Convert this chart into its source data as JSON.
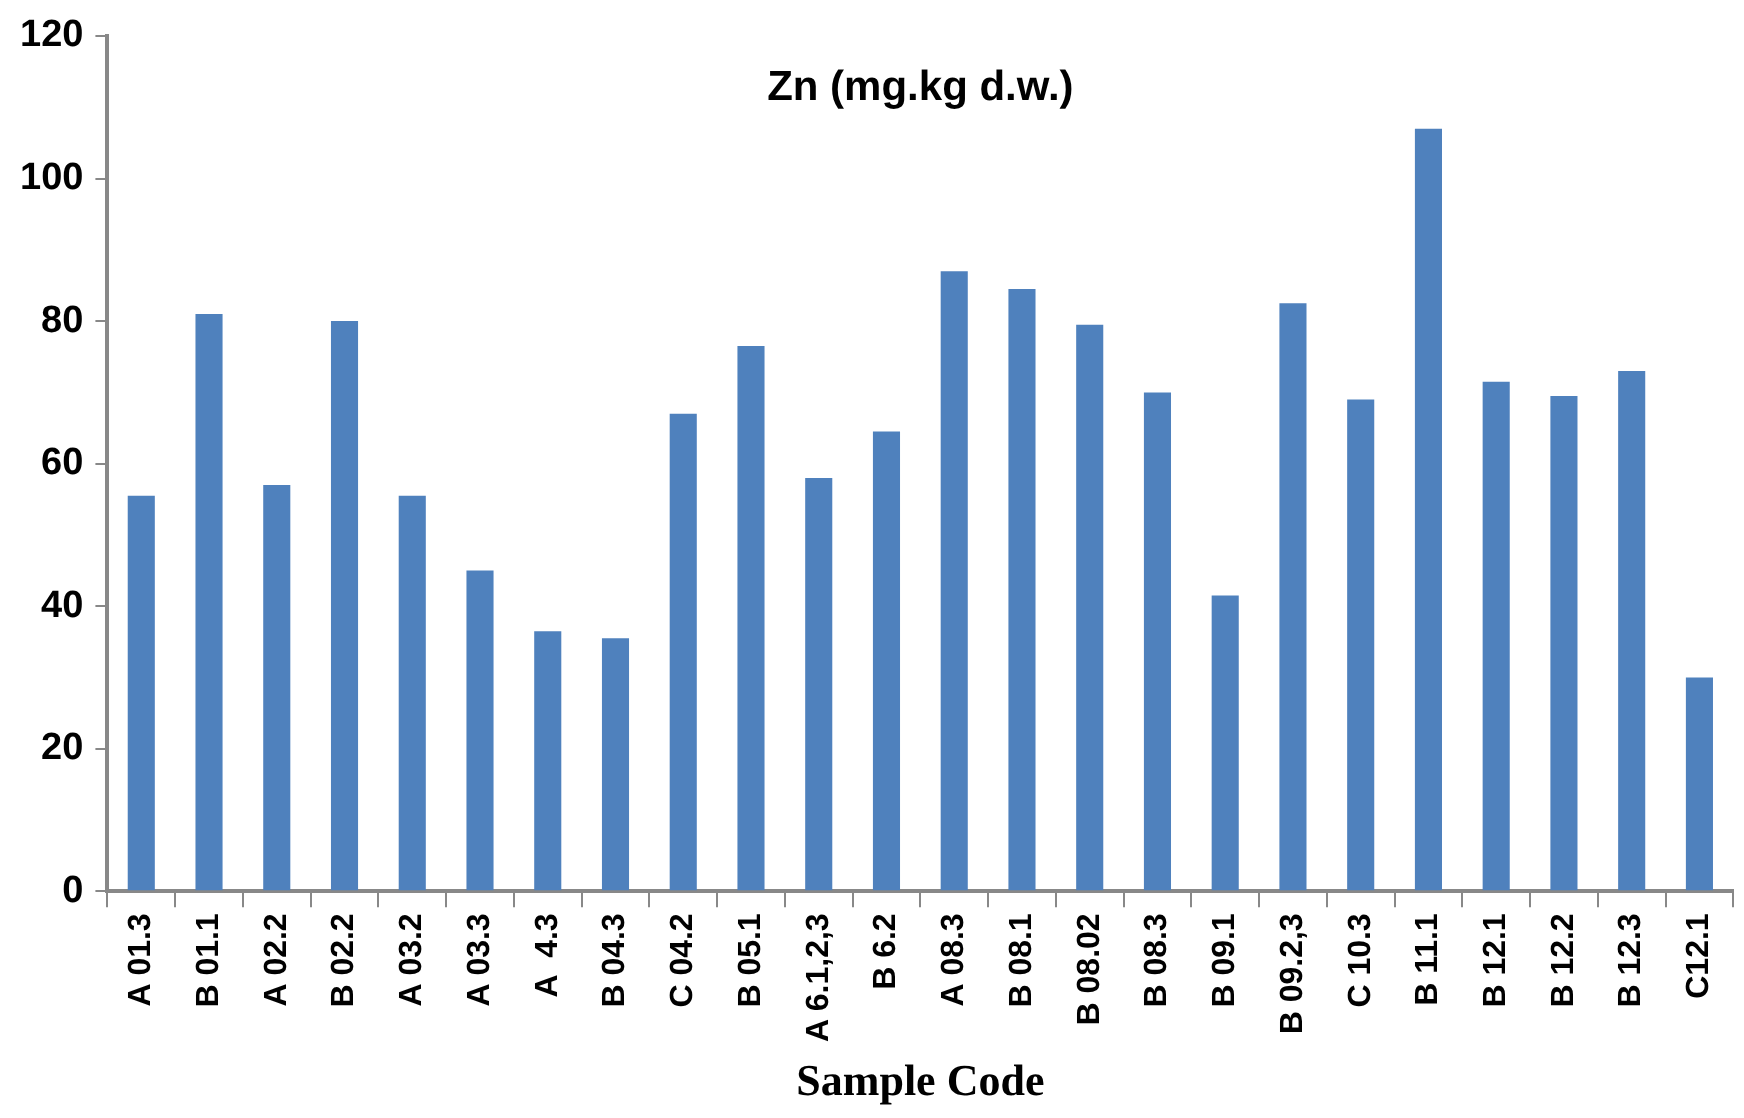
{
  "chart_data": {
    "type": "bar",
    "title": "Zn (mg.kg d.w.)",
    "xlabel": "Sample Code",
    "categories": [
      "A 01.3",
      "B 01.1",
      "A 02.2",
      "B 02.2",
      "A 03.2",
      "A 03.3",
      "A  4.3",
      "B 04.3",
      "C 04.2",
      "B 05.1",
      "A 6.1,2,3",
      "B 6.2",
      "A 08.3",
      "B 08.1",
      "B 08.02",
      "B 08.3",
      "B 09.1",
      "B 09.2,3",
      "C 10.3",
      "B 11.1",
      "B 12.1",
      "B 12.2",
      "B 12.3",
      "C12.1"
    ],
    "values": [
      55.5,
      81,
      57,
      80,
      55.5,
      45,
      36.5,
      35.5,
      67,
      76.5,
      58,
      64.5,
      87,
      84.5,
      79.5,
      70,
      41.5,
      82.5,
      69,
      107,
      71.5,
      69.5,
      73,
      30
    ],
    "color": "#4f81bd",
    "ylim": [
      0,
      120
    ],
    "yticks": [
      0,
      20,
      40,
      60,
      80,
      100,
      120
    ],
    "grid": false,
    "legend": false
  }
}
